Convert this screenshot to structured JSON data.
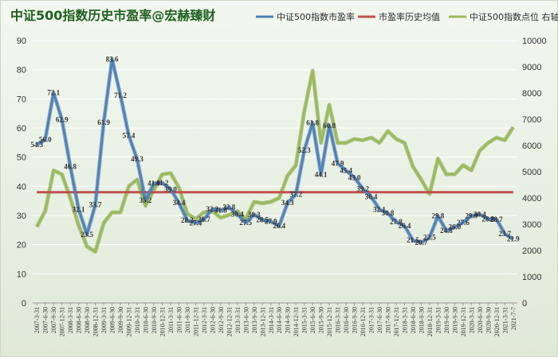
{
  "chart_data": {
    "type": "line",
    "title": "中证500指数历史市盈率@宏赫臻财",
    "categories": [
      "2007-3-31",
      "2007-6-30",
      "2007-9-30",
      "2007-12-31",
      "2008-3-31",
      "2008-6-30",
      "2008-9-30",
      "2008-12-31",
      "2009-3-31",
      "2009-6-30",
      "2009-9-30",
      "2009-12-31",
      "2010-3-31",
      "2010-6-30",
      "2010-9-30",
      "2010-12-31",
      "2011-3-31",
      "2011-6-30",
      "2011-9-30",
      "2011-12-31",
      "2012-3-31",
      "2012-6-30",
      "2012-9-30",
      "2012-12-31",
      "2013-3-31",
      "2013-6-30",
      "2013-9-30",
      "2013-12-31",
      "2014-3-31",
      "2014-6-30",
      "2014-9-30",
      "2014-12-31",
      "2015-3-31",
      "2015-6-30",
      "2015-9-30",
      "2015-12-31",
      "2016-3-31",
      "2016-6-30",
      "2016-9-30",
      "2016-12-31",
      "2017-3-31",
      "2017-6-30",
      "2017-9-30",
      "2017-12-31",
      "2018-3-31",
      "2018-6-30",
      "2018-9-30",
      "2018-12-31",
      "2019-3-31",
      "2019-6-30",
      "2019-9-30",
      "2019-12-31",
      "2020-3-31",
      "2020-6-30",
      "2020-9-30",
      "2020-12-31",
      "2021-3-31",
      "2021-7-7"
    ],
    "y_left": {
      "min": 0,
      "max": 90,
      "step": 10,
      "ticks": [
        "0",
        "10",
        "20",
        "30",
        "40",
        "50",
        "60",
        "70",
        "80",
        "90"
      ]
    },
    "y_right": {
      "min": 0,
      "max": 10000,
      "step": 1000,
      "ticks": [
        "0",
        "1000",
        "2000",
        "3000",
        "4000",
        "5000",
        "6000",
        "7000",
        "8000",
        "9000",
        "10000"
      ]
    },
    "series": [
      {
        "name": "中证500指数市盈率",
        "axis": "left",
        "color": "#4f81bd",
        "values": [
          54.3,
          56.0,
          72.1,
          62.9,
          46.8,
          32.1,
          23.5,
          33.7,
          61.9,
          83.6,
          71.2,
          57.4,
          49.3,
          35.2,
          41.0,
          41.2,
          39.0,
          34.4,
          28.3,
          27.4,
          28.7,
          32.2,
          31.8,
          32.8,
          30.4,
          27.5,
          30.3,
          28.5,
          27.9,
          26.4,
          34.3,
          37.2,
          52.3,
          61.8,
          44.1,
          60.8,
          47.9,
          45.4,
          43.0,
          39.2,
          36.4,
          32.1,
          30.8,
          27.8,
          26.4,
          21.5,
          20.7,
          22.5,
          29.8,
          24.8,
          26.0,
          27.6,
          29.9,
          30.4,
          28.8,
          28.7,
          23.7,
          21.9
        ],
        "labels": [
          "54.3",
          "56.0",
          "72.1",
          "62.9",
          "46.8",
          "32.1",
          "23.5",
          "33.7",
          "61.9",
          "83.6",
          "71.2",
          "57.4",
          "49.3",
          "35.2",
          "41.0",
          "41.2",
          "39.0",
          "34.4",
          "28.3",
          "27.4",
          "28.7",
          "32.2",
          "31.8",
          "32.8",
          "30.4",
          "27.5",
          "30.3",
          "28.5",
          "27.9",
          "26.4",
          "34.3",
          "37.2",
          "52.3",
          "61.8",
          "44.1",
          "60.8",
          "47.9",
          "45.4",
          "43.0",
          "39.2",
          "36.4",
          "32.1",
          "30.8",
          "27.8",
          "26.4",
          "21.5",
          "20.7",
          "22.5",
          "29.8",
          "24.8",
          "26.0",
          "27.6",
          "29.9",
          "30.4",
          "28.8",
          "28.7",
          "23.7",
          "21.9"
        ]
      },
      {
        "name": "市盈率历史均值",
        "axis": "left",
        "color": "#c0504d",
        "values": [
          38.0,
          38.0,
          38.0,
          38.0,
          38.0,
          38.0,
          38.0,
          38.0,
          38.0,
          38.0,
          38.0,
          38.0,
          38.0,
          38.0,
          38.0,
          38.0,
          38.0,
          38.0,
          38.0,
          38.0,
          38.0,
          38.0,
          38.0,
          38.0,
          38.0,
          38.0,
          38.0,
          38.0,
          38.0,
          38.0,
          38.0,
          38.0,
          38.0,
          38.0,
          38.0,
          38.0,
          38.0,
          38.0,
          38.0,
          38.0,
          38.0,
          38.0,
          38.0,
          38.0,
          38.0,
          38.0,
          38.0,
          38.0,
          38.0,
          38.0,
          38.0,
          38.0,
          38.0,
          38.0,
          38.0,
          38.0,
          38.0,
          38.0
        ]
      },
      {
        "name": "中证500指数点位 右轴",
        "axis": "right",
        "color": "#9bbb59",
        "values": [
          2900,
          3500,
          5050,
          4900,
          4000,
          2950,
          2150,
          1950,
          3050,
          3450,
          3450,
          4450,
          4700,
          3700,
          4300,
          4900,
          4950,
          4400,
          3400,
          3200,
          3450,
          3500,
          3250,
          3350,
          3500,
          3200,
          3850,
          3800,
          3850,
          4000,
          4850,
          5250,
          7300,
          8850,
          6100,
          7550,
          6100,
          6100,
          6250,
          6200,
          6300,
          6100,
          6550,
          6250,
          6100,
          5200,
          4700,
          4150,
          5500,
          4900,
          4900,
          5250,
          5050,
          5800,
          6100,
          6300,
          6200,
          6700
        ]
      }
    ]
  }
}
